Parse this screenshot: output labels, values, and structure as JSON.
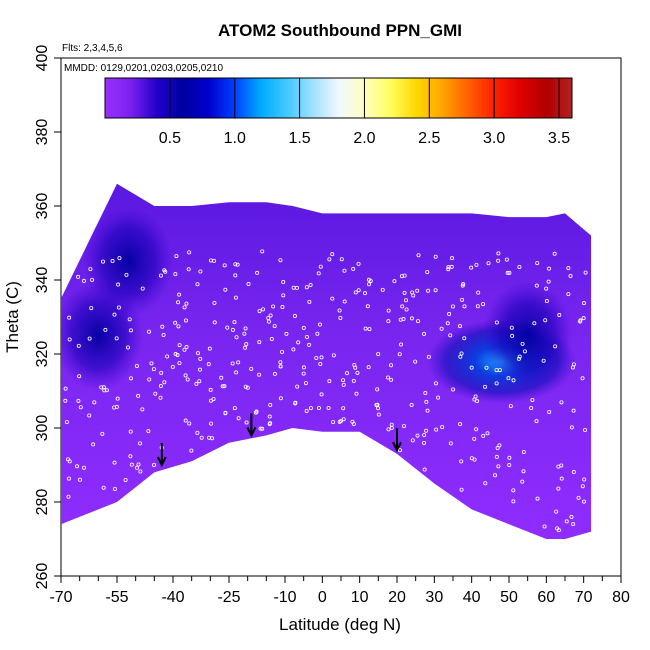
{
  "chart_data": {
    "type": "heatmap",
    "title": "ATOM2 Southbound PPN_GMI",
    "xlabel": "Latitude (deg N)",
    "ylabel": "Theta (C)",
    "notes": [
      "Flts: 2,3,4,5,6",
      "MMDD: 0129,0201,0203,0205,0210"
    ],
    "xlim": [
      -70,
      80
    ],
    "ylim": [
      260,
      400
    ],
    "x_tick_labels": [
      "-70",
      "-55",
      "-40",
      "-25",
      "-10",
      "0",
      "10",
      "20",
      "30",
      "40",
      "50",
      "60",
      "70",
      "80"
    ],
    "x_tick_values": [
      -70,
      -55,
      -40,
      -25,
      -10,
      0,
      10,
      20,
      30,
      40,
      50,
      60,
      70,
      80
    ],
    "x_minor_ticks": [
      -65,
      -60,
      -50,
      -45,
      -35,
      -30,
      -20,
      -15,
      -5,
      5,
      15,
      25,
      35,
      45,
      55,
      65,
      75
    ],
    "y_ticks": [
      260,
      280,
      300,
      320,
      340,
      360,
      380,
      400
    ],
    "colorbar": {
      "min": 0.0,
      "max": 3.6,
      "ticks": [
        "0.5",
        "1.0",
        "1.5",
        "2.0",
        "2.5",
        "3.0",
        "3.5"
      ],
      "tick_values": [
        0.5,
        1.0,
        1.5,
        2.0,
        2.5,
        3.0,
        3.5
      ],
      "colors": [
        "#9a30ff",
        "#7b20f0",
        "#2200cc",
        "#0000a0",
        "#0000cd",
        "#0040ff",
        "#00aaff",
        "#40c8ff",
        "#a0e0ff",
        "#f0f8ff",
        "#ffffc0",
        "#ffff60",
        "#ffd700",
        "#ffa500",
        "#ff6000",
        "#ff2000",
        "#e00000",
        "#b20000",
        "#b22222"
      ]
    },
    "coverage": {
      "lat": [
        -70,
        -55,
        -45,
        -35,
        -25,
        -15,
        -8,
        0,
        10,
        20,
        30,
        40,
        50,
        60,
        65,
        72
      ],
      "bottom_theta": [
        274,
        280,
        288,
        291,
        296,
        298,
        300,
        299,
        299,
        293,
        285,
        278,
        274,
        270,
        270,
        272
      ],
      "top_theta": [
        335,
        366,
        360,
        360,
        361,
        361,
        360,
        358,
        358,
        358,
        358,
        358,
        357,
        357,
        358,
        352
      ]
    },
    "low_ppn_features": [
      {
        "lat": 48,
        "theta": 318,
        "value": 1.3
      },
      {
        "lat": 55,
        "theta": 325,
        "value": 0.6
      },
      {
        "lat": -60,
        "theta": 325,
        "value": 0.4
      },
      {
        "lat": -52,
        "theta": 345,
        "value": 0.5
      }
    ],
    "arrows": [
      {
        "lat": -43,
        "theta": 290
      },
      {
        "lat": -19,
        "theta": 298
      },
      {
        "lat": 20,
        "theta": 294
      }
    ]
  }
}
